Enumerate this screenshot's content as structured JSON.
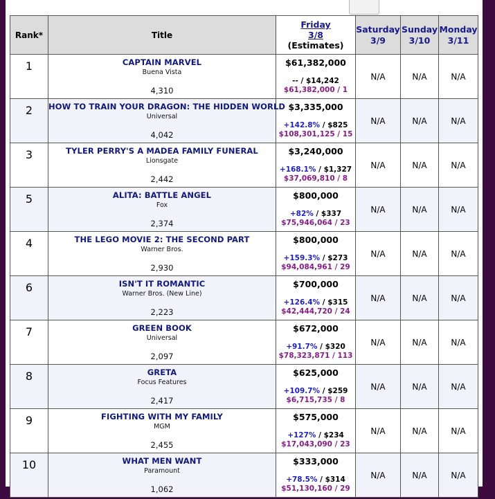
{
  "header": {
    "rank": "Rank*",
    "title": "Title",
    "friday": {
      "day": "Friday",
      "date": "3/8",
      "note": "(Estimates)"
    },
    "saturday": {
      "day": "Saturday",
      "date": "3/9"
    },
    "sunday": {
      "day": "Sunday",
      "date": "3/10"
    },
    "monday": {
      "day": "Monday",
      "date": "3/11"
    }
  },
  "rows": [
    {
      "rank": "1",
      "title": "CAPTAIN MARVEL",
      "distributor": "Buena Vista",
      "theaters": "4,310",
      "gross": "$61,382,000",
      "change": "--",
      "avg": " / $14,242",
      "cume": "$61,382,000 / 1",
      "sat": "N/A",
      "sun": "N/A",
      "mon": "N/A"
    },
    {
      "rank": "2",
      "title": "HOW TO TRAIN YOUR DRAGON: THE HIDDEN WORLD",
      "distributor": "Universal",
      "theaters": "4,042",
      "gross": "$3,335,000",
      "change": "+142.8%",
      "avg": " / $825",
      "cume": "$108,301,125 / 15",
      "sat": "N/A",
      "sun": "N/A",
      "mon": "N/A"
    },
    {
      "rank": "3",
      "title": "TYLER PERRY'S A MADEA FAMILY FUNERAL",
      "distributor": "Lionsgate",
      "theaters": "2,442",
      "gross": "$3,240,000",
      "change": "+168.1%",
      "avg": " / $1,327",
      "cume": "$37,069,810 / 8",
      "sat": "N/A",
      "sun": "N/A",
      "mon": "N/A"
    },
    {
      "rank": "5",
      "title": "ALITA: BATTLE ANGEL",
      "distributor": "Fox",
      "theaters": "2,374",
      "gross": "$800,000",
      "change": "+82%",
      "avg": " / $337",
      "cume": "$75,946,064 / 23",
      "sat": "N/A",
      "sun": "N/A",
      "mon": "N/A"
    },
    {
      "rank": "4",
      "title": "THE LEGO MOVIE 2: THE SECOND PART",
      "distributor": "Warner Bros.",
      "theaters": "2,930",
      "gross": "$800,000",
      "change": "+159.3%",
      "avg": " / $273",
      "cume": "$94,084,961 / 29",
      "sat": "N/A",
      "sun": "N/A",
      "mon": "N/A"
    },
    {
      "rank": "6",
      "title": "ISN'T IT ROMANTIC",
      "distributor": "Warner Bros. (New Line)",
      "theaters": "2,223",
      "gross": "$700,000",
      "change": "+126.4%",
      "avg": " / $315",
      "cume": "$42,444,720 / 24",
      "sat": "N/A",
      "sun": "N/A",
      "mon": "N/A"
    },
    {
      "rank": "7",
      "title": "GREEN BOOK",
      "distributor": "Universal",
      "theaters": "2,097",
      "gross": "$672,000",
      "change": "+91.7%",
      "avg": " / $320",
      "cume": "$78,323,871 / 113",
      "sat": "N/A",
      "sun": "N/A",
      "mon": "N/A"
    },
    {
      "rank": "8",
      "title": "GRETA",
      "distributor": "Focus Features",
      "theaters": "2,417",
      "gross": "$625,000",
      "change": "+109.7%",
      "avg": " / $259",
      "cume": "$6,715,735 / 8",
      "sat": "N/A",
      "sun": "N/A",
      "mon": "N/A"
    },
    {
      "rank": "9",
      "title": "FIGHTING WITH MY FAMILY",
      "distributor": "MGM",
      "theaters": "2,455",
      "gross": "$575,000",
      "change": "+127%",
      "avg": " / $234",
      "cume": "$17,043,090 / 23",
      "sat": "N/A",
      "sun": "N/A",
      "mon": "N/A"
    },
    {
      "rank": "10",
      "title": "WHAT MEN WANT",
      "distributor": "Paramount",
      "theaters": "1,062",
      "gross": "$333,000",
      "change": "+78.5%",
      "avg": " / $314",
      "cume": "$51,130,160 / 29",
      "sat": "N/A",
      "sun": "N/A",
      "mon": "N/A"
    }
  ],
  "colors": {
    "background": "#3d0a3f",
    "title_text": "#111a7a",
    "change_pct": "#2222bb",
    "cume": "#8a1a8a",
    "header_bg": "#dcdcdc",
    "alt_row": "#f2f2fb"
  }
}
